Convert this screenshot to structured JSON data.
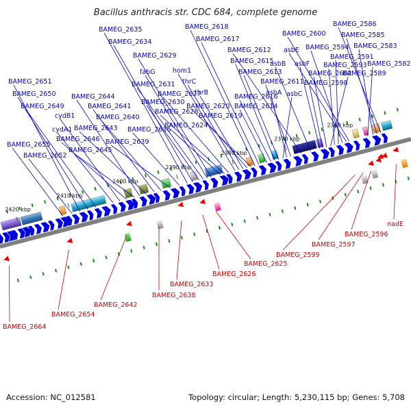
{
  "title": "Bacillus anthracis str. CDC 684, complete genome",
  "footer": {
    "accession": "Accession: NC_012581",
    "summary": "Topology: circular; Length: 5,230,115 bp; Genes: 5,708"
  },
  "ticks": [
    "2360 kbp",
    "2370 kbp",
    "2380 kbp",
    "2390 kbp",
    "2400 kbp",
    "2410 kbp",
    "2420 kbp"
  ],
  "forward_labels": [
    "BAMEG_2586",
    "BAMEG_2585",
    "BAMEG_2583",
    "BAMEG_2582",
    "BAMEG_2600",
    "asbE",
    "BAMEG_2594",
    "BAMEG_2591",
    "BAMEG_2593",
    "BAMEG_2589",
    "BAMEG_2602",
    "BAMEG_2598",
    "asbF",
    "asbB",
    "BAMEG_2612",
    "BAMEG_2611",
    "asbA",
    "asbC",
    "BAMEG_2613",
    "BAMEG_2615",
    "BAMEG_2616",
    "BAMEG_2614",
    "BAMEG_2617",
    "BAMEG_2618",
    "BAMEG_2620",
    "BAMEG_2619",
    "thrB",
    "thrC",
    "hom1",
    "BAMEG_2627",
    "BAMEG_2628",
    "BAMEG_2624",
    "BAMEG_2629",
    "fabG",
    "BAMEG_2631",
    "BAMEG_2630",
    "BAMEG_2634",
    "BAMEG_2635",
    "BAMEG_2636",
    "BAMEG_2639",
    "BAMEG_2640",
    "BAMEG_2641",
    "BAMEG_2643",
    "BAMEG_2644",
    "BAMEG_2645",
    "BAMEG_2646",
    "cydB1",
    "cydA1",
    "BAMEG_2649",
    "BAMEG_2650",
    "BAMEG_2651",
    "BAMEG_2652",
    "BAMEG_2655"
  ],
  "reverse_labels": [
    "nadE",
    "BAMEG_2596",
    "BAMEG_2597",
    "BAMEG_2599",
    "BAMEG_2625",
    "BAMEG_2626",
    "BAMEG_2633",
    "BAMEG_2638",
    "BAMEG_2642",
    "BAMEG_2654",
    "BAMEG_2664"
  ],
  "colors": {
    "forward_gene": "#0000dd",
    "forward_label": "#0000cc",
    "reverse_gene": "#ee0000",
    "reverse_label": "#cc0000",
    "backbone": "#808080",
    "orf_tick": "#1a8a1a"
  }
}
